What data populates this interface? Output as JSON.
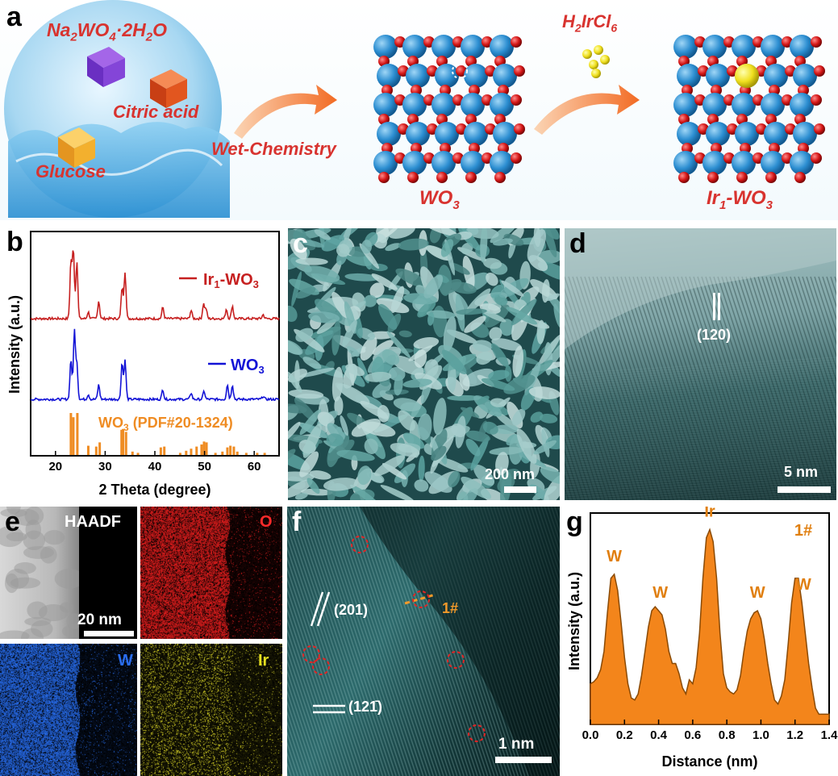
{
  "panel_a": {
    "letter": "a",
    "precursors": [
      {
        "formula": "Na₂WO₄·2H₂O",
        "icon": "purple-cube-icon",
        "color": "#7b3fd1"
      },
      {
        "formula": "Citric acid",
        "icon": "orange-cube-icon",
        "color": "#e0562a"
      },
      {
        "formula": "Glucose",
        "icon": "yellow-cube-icon",
        "color": "#f1a52a"
      }
    ],
    "step1": "Wet-Chemistry",
    "product1": "WO",
    "product1_sub": "3",
    "reagent_main": "H",
    "reagent_sub1": "2",
    "reagent_rest": "IrCl",
    "reagent_sub2": "6",
    "product2_pre": "Ir",
    "product2_sub1": "1",
    "product2_mid": "-WO",
    "product2_sub2": "3",
    "atom_colors": {
      "W": "#2c8ed1",
      "O": "#d41616",
      "Ir": "#f0e020"
    }
  },
  "panel_b": {
    "letter": "b",
    "series": [
      {
        "name": "Ir₁-WO₃",
        "color": "#c62020"
      },
      {
        "name": "WO₃",
        "color": "#1313d6"
      },
      {
        "name": "WO₃ (PDF#20-1324)",
        "color": "#ef8c23"
      }
    ]
  },
  "chart_data": [
    {
      "type": "line",
      "xlabel": "2 Theta (degree)",
      "ylabel": "Intensity (a.u.)",
      "xlim": [
        15,
        65
      ],
      "xticks": [
        20,
        30,
        40,
        50,
        60
      ],
      "series": [
        {
          "name": "Ir₁-WO₃",
          "peaks": [
            [
              23.1,
              0.7
            ],
            [
              23.6,
              0.85
            ],
            [
              24.3,
              0.72
            ],
            [
              26.6,
              0.08
            ],
            [
              28.7,
              0.22
            ],
            [
              33.4,
              0.38
            ],
            [
              34.0,
              0.58
            ],
            [
              41.6,
              0.14
            ],
            [
              47.3,
              0.1
            ],
            [
              49.8,
              0.18
            ],
            [
              50.3,
              0.12
            ],
            [
              54.4,
              0.12
            ],
            [
              55.6,
              0.16
            ],
            [
              61.8,
              0.05
            ]
          ]
        },
        {
          "name": "WO₃",
          "peaks": [
            [
              23.1,
              0.5
            ],
            [
              23.8,
              0.85
            ],
            [
              24.3,
              0.45
            ],
            [
              26.6,
              0.06
            ],
            [
              28.7,
              0.18
            ],
            [
              33.4,
              0.45
            ],
            [
              34.0,
              0.48
            ],
            [
              41.6,
              0.12
            ],
            [
              47.3,
              0.08
            ],
            [
              49.9,
              0.1
            ],
            [
              54.6,
              0.18
            ],
            [
              55.6,
              0.18
            ],
            [
              61.8,
              0.04
            ]
          ]
        },
        {
          "name": "WO₃ (PDF#20-1324)",
          "sticks": [
            [
              23.1,
              1.0
            ],
            [
              23.6,
              0.9
            ],
            [
              24.4,
              1.0
            ],
            [
              26.6,
              0.22
            ],
            [
              28.2,
              0.2
            ],
            [
              28.9,
              0.3
            ],
            [
              33.3,
              0.6
            ],
            [
              33.6,
              0.62
            ],
            [
              34.2,
              0.55
            ],
            [
              35.5,
              0.08
            ],
            [
              36.6,
              0.05
            ],
            [
              41.2,
              0.18
            ],
            [
              41.9,
              0.2
            ],
            [
              45.1,
              0.05
            ],
            [
              46.3,
              0.1
            ],
            [
              47.3,
              0.15
            ],
            [
              48.4,
              0.2
            ],
            [
              49.4,
              0.25
            ],
            [
              49.9,
              0.32
            ],
            [
              50.4,
              0.3
            ],
            [
              52.2,
              0.05
            ],
            [
              53.6,
              0.08
            ],
            [
              54.6,
              0.18
            ],
            [
              55.2,
              0.22
            ],
            [
              55.9,
              0.2
            ],
            [
              56.6,
              0.08
            ],
            [
              58.4,
              0.05
            ],
            [
              60.6,
              0.05
            ],
            [
              62.1,
              0.05
            ]
          ]
        }
      ]
    },
    {
      "type": "area",
      "xlabel": "Distance (nm)",
      "ylabel": "Intensity (a.u.)",
      "xlim": [
        0,
        1.4
      ],
      "xticks": [
        0.0,
        0.2,
        0.4,
        0.6,
        0.8,
        1.0,
        1.2,
        1.4
      ],
      "x": [
        0.0,
        0.02,
        0.04,
        0.06,
        0.08,
        0.1,
        0.12,
        0.14,
        0.16,
        0.18,
        0.2,
        0.22,
        0.24,
        0.26,
        0.28,
        0.3,
        0.32,
        0.34,
        0.36,
        0.38,
        0.4,
        0.42,
        0.44,
        0.46,
        0.48,
        0.5,
        0.52,
        0.54,
        0.56,
        0.58,
        0.6,
        0.62,
        0.64,
        0.66,
        0.68,
        0.7,
        0.72,
        0.74,
        0.76,
        0.78,
        0.8,
        0.82,
        0.84,
        0.86,
        0.88,
        0.9,
        0.92,
        0.94,
        0.96,
        0.98,
        1.0,
        1.02,
        1.04,
        1.06,
        1.08,
        1.1,
        1.12,
        1.14,
        1.16,
        1.18,
        1.2,
        1.22,
        1.24,
        1.26,
        1.28,
        1.3,
        1.32,
        1.34,
        1.36,
        1.38,
        1.4
      ],
      "values": [
        0.2,
        0.21,
        0.23,
        0.27,
        0.36,
        0.55,
        0.72,
        0.74,
        0.66,
        0.5,
        0.33,
        0.2,
        0.13,
        0.12,
        0.15,
        0.24,
        0.36,
        0.48,
        0.56,
        0.58,
        0.56,
        0.54,
        0.47,
        0.36,
        0.3,
        0.3,
        0.25,
        0.18,
        0.15,
        0.22,
        0.2,
        0.28,
        0.45,
        0.72,
        0.92,
        0.96,
        0.9,
        0.72,
        0.45,
        0.25,
        0.18,
        0.16,
        0.15,
        0.17,
        0.24,
        0.36,
        0.46,
        0.52,
        0.55,
        0.56,
        0.52,
        0.42,
        0.3,
        0.2,
        0.12,
        0.1,
        0.14,
        0.22,
        0.4,
        0.6,
        0.72,
        0.72,
        0.6,
        0.45,
        0.3,
        0.18,
        0.08,
        0.05,
        0.05,
        0.05,
        0.05
      ],
      "annotations": [
        {
          "text": "W",
          "x": 0.14
        },
        {
          "text": "W",
          "x": 0.41
        },
        {
          "text": "Ir",
          "x": 0.7
        },
        {
          "text": "W",
          "x": 0.98
        },
        {
          "text": "W",
          "x": 1.25
        },
        {
          "text": "1#"
        }
      ]
    }
  ],
  "panel_c": {
    "letter": "c",
    "scale": "200 nm"
  },
  "panel_d": {
    "letter": "d",
    "plane": "(120)",
    "scale": "5 nm"
  },
  "panel_e": {
    "letter": "e",
    "haadf": "HAADF",
    "scale": "20 nm",
    "map_o": "O",
    "map_w": "W",
    "map_ir": "Ir"
  },
  "panel_f": {
    "letter": "f",
    "plane1": "(201)",
    "plane2": "(121̄)",
    "label": "1#",
    "scale": "1 nm"
  },
  "panel_g": {
    "letter": "g"
  }
}
